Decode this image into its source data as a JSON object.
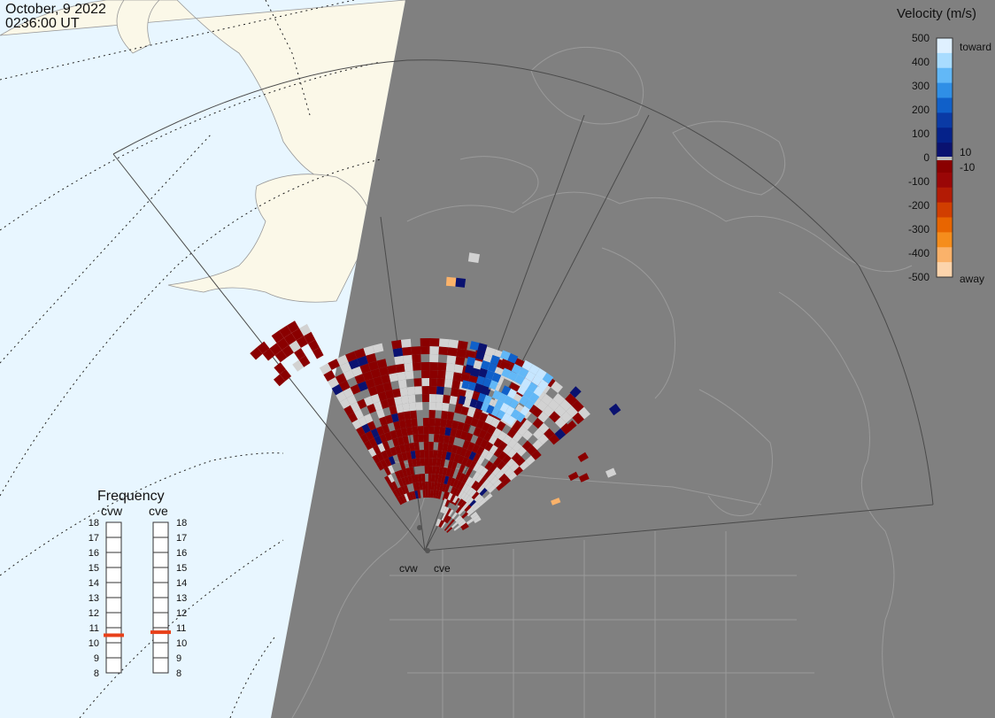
{
  "timestamp": {
    "date": "October, 9 2022",
    "time": "0236:00 UT"
  },
  "velocity_legend": {
    "title": "Velocity (m/s)",
    "ticks": [
      "500",
      "400",
      "300",
      "200",
      "100",
      "0",
      "-100",
      "-200",
      "-300",
      "-400",
      "-500"
    ],
    "label_toward": "toward",
    "label_away": "away",
    "label_pos_threshold": "10",
    "label_neg_threshold": "-10",
    "colors": [
      "#dff0ff",
      "#a9dcff",
      "#62b8f7",
      "#2f8fe6",
      "#1060c9",
      "#0a3aa5",
      "#05228a",
      "#0a1270",
      "#8a0000",
      "#9a0606",
      "#b31b05",
      "#d13e00",
      "#e86500",
      "#f58d1c",
      "#fab26a",
      "#fcd4ac"
    ]
  },
  "frequency_panel": {
    "title": "Frequency",
    "radars": [
      {
        "code": "cvw",
        "selected_mhz": 10.5
      },
      {
        "code": "cve",
        "selected_mhz": 10.7
      }
    ],
    "scale": [
      "18",
      "17",
      "16",
      "15",
      "14",
      "13",
      "12",
      "11",
      "10",
      "9",
      "8"
    ],
    "marker_color": "#e8401a"
  },
  "map": {
    "site_labels": [
      "cvw",
      "cve"
    ],
    "colors": {
      "ocean": "#e8f6ff",
      "land": "#fbf8e8",
      "night": "#808080",
      "borders": "#9a9a9a",
      "fov_outline": "#5a5a5a",
      "grid": "#222222",
      "ground_scatter": "#d2d2d2"
    }
  }
}
